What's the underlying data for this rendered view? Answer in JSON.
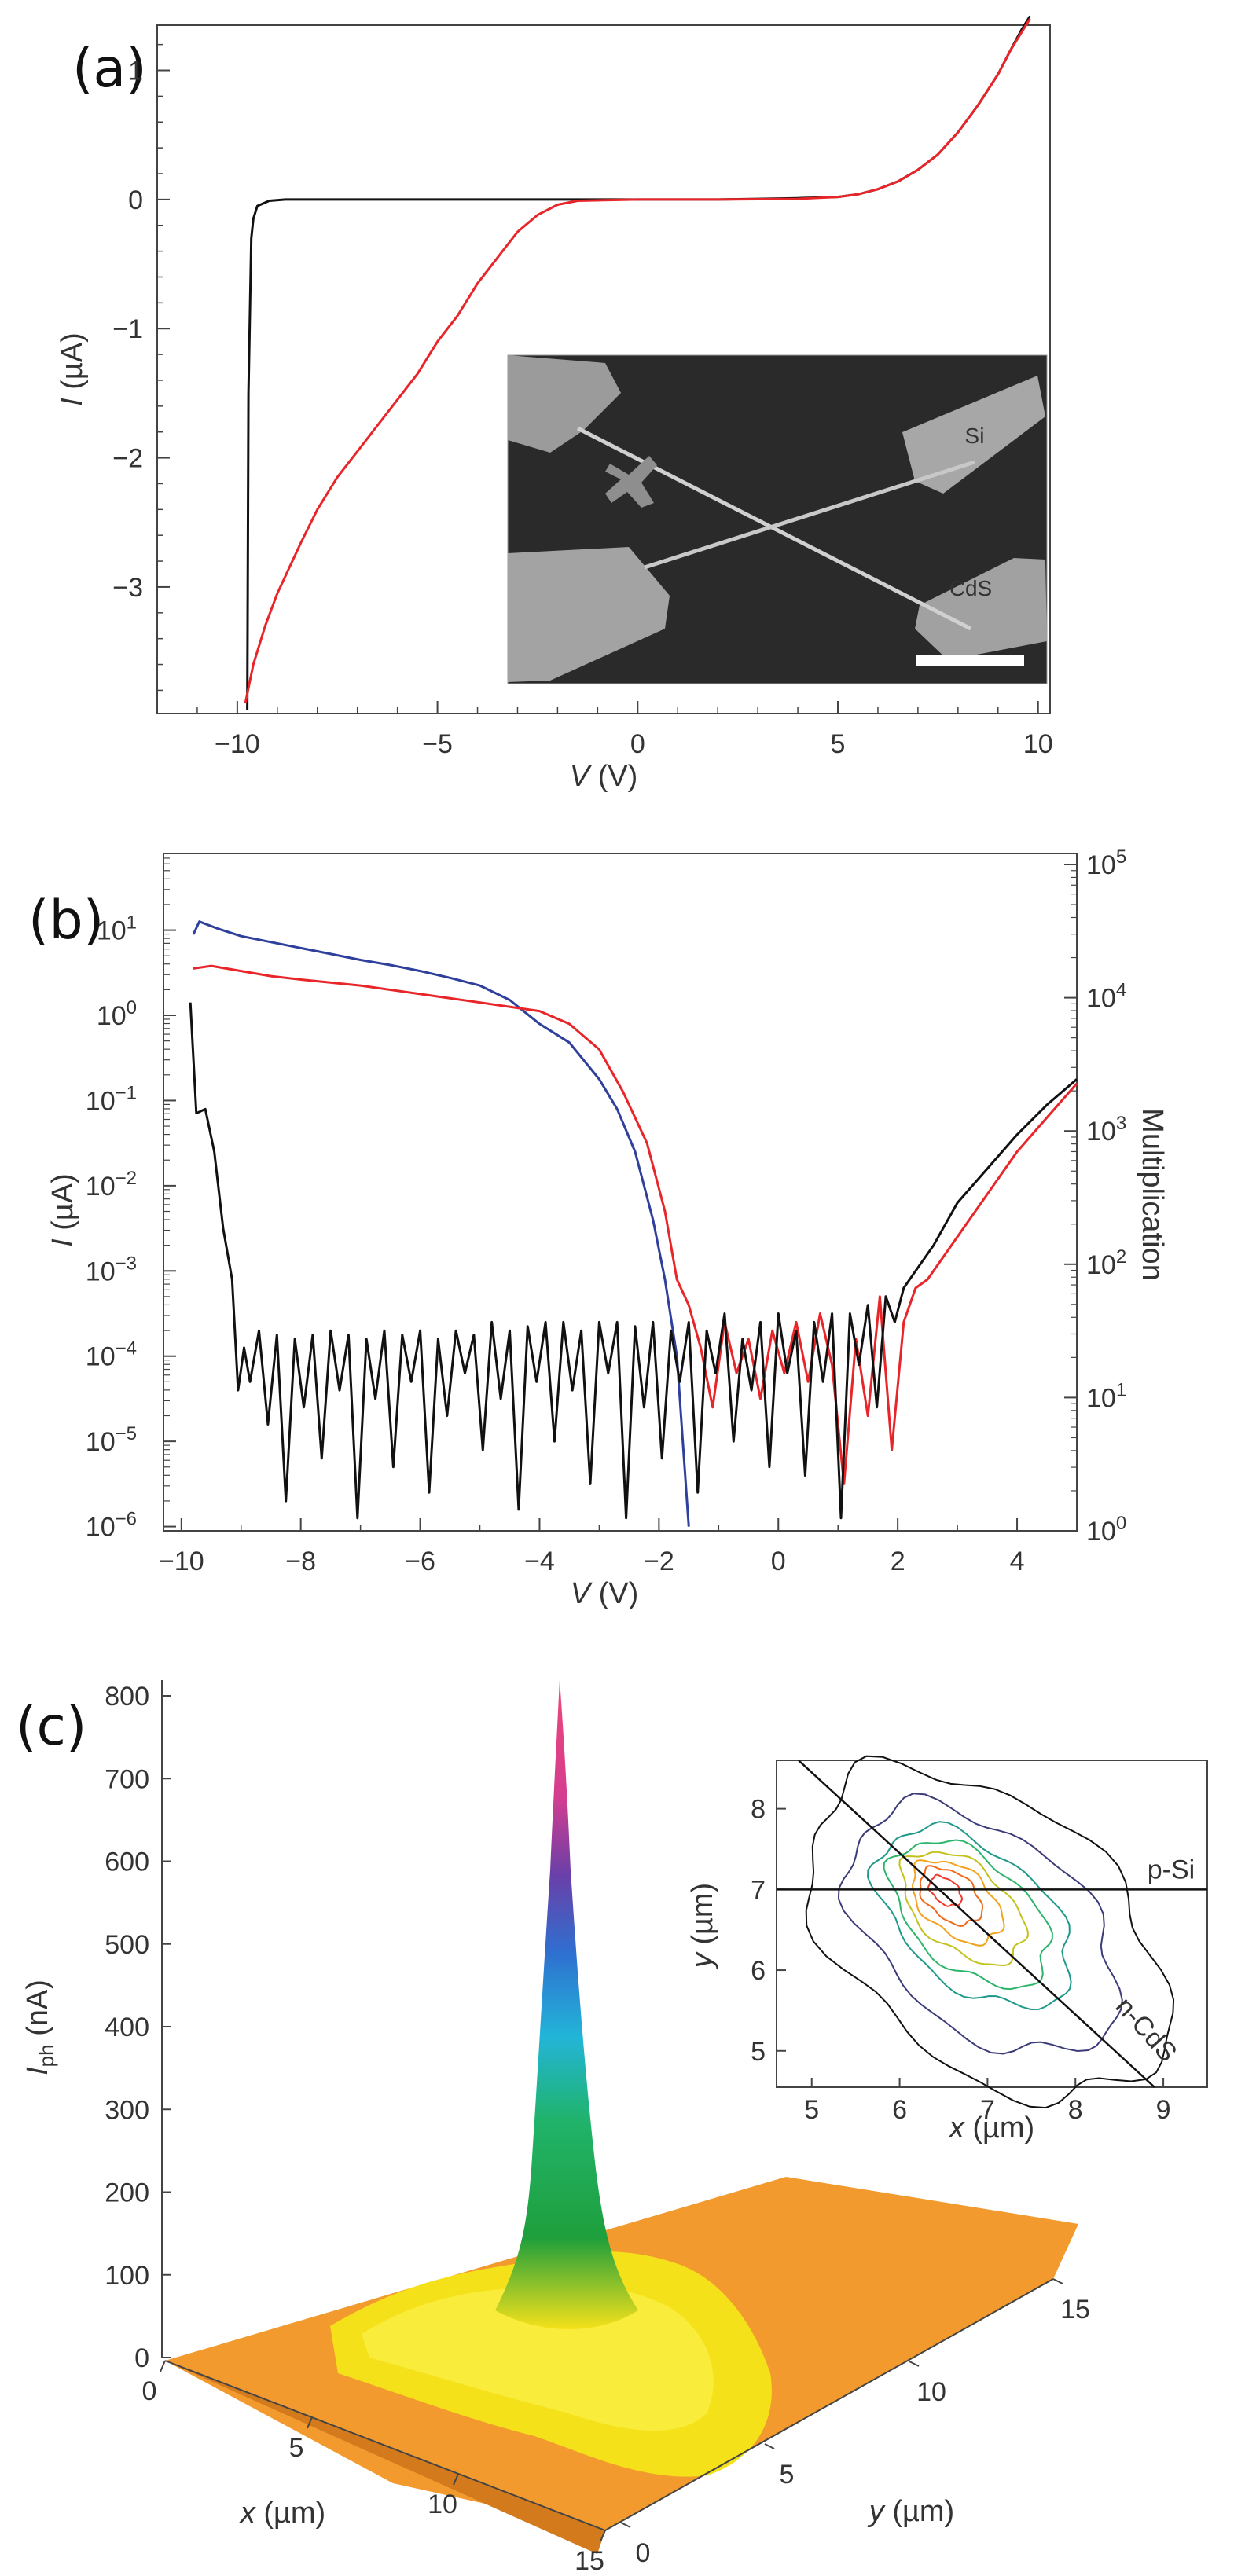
{
  "panels": [
    {
      "label": "(a)"
    },
    {
      "label": "(b)"
    },
    {
      "label": "(c)"
    }
  ],
  "chart_data": [
    {
      "type": "line",
      "panel": "(a)",
      "xlabel_symbol": "V",
      "xlabel_unit": "(V)",
      "ylabel_symbol": "I",
      "ylabel_unit": "(µA)",
      "xlim": [
        -12,
        10.3
      ],
      "ylim": [
        -3.98,
        1.35
      ],
      "xticks": [
        -10,
        -5,
        0,
        5,
        10
      ],
      "xtick_labels": [
        "−10",
        "−5",
        "0",
        "5",
        "10"
      ],
      "yticks": [
        1,
        0,
        -1,
        -2,
        -3
      ],
      "ytick_labels": [
        "1",
        "0",
        "−1",
        "−2",
        "−3"
      ],
      "series": [
        {
          "color": "#111111",
          "x": [
            -9.75,
            -9.72,
            -9.65,
            -9.6,
            -9.5,
            -9.2,
            -8.8,
            -8,
            -6,
            -4,
            -2,
            0,
            2,
            3,
            4,
            5,
            5.5,
            6,
            6.5,
            7,
            7.5,
            8,
            8.5,
            9,
            9.3,
            9.6,
            9.8
          ],
          "y": [
            -3.95,
            -1.5,
            -0.3,
            -0.15,
            -0.05,
            -0.01,
            0,
            0,
            0,
            0,
            0,
            0,
            0,
            0.005,
            0.01,
            0.02,
            0.04,
            0.08,
            0.14,
            0.23,
            0.35,
            0.52,
            0.73,
            0.97,
            1.15,
            1.32,
            1.42
          ]
        },
        {
          "color": "#e8262a",
          "x": [
            -9.8,
            -9.6,
            -9.3,
            -9,
            -8.7,
            -8.4,
            -8,
            -7.5,
            -7,
            -6.5,
            -6,
            -5.5,
            -5,
            -4.5,
            -4,
            -3.5,
            -3,
            -2.5,
            -2,
            -1.5,
            0,
            2,
            4,
            5,
            5.5,
            6,
            6.5,
            7,
            7.5,
            8,
            8.5,
            9,
            9.3,
            9.6,
            9.8
          ],
          "y": [
            -3.9,
            -3.6,
            -3.3,
            -3.05,
            -2.85,
            -2.65,
            -2.4,
            -2.15,
            -1.95,
            -1.75,
            -1.55,
            -1.35,
            -1.1,
            -0.9,
            -0.65,
            -0.45,
            -0.25,
            -0.12,
            -0.04,
            -0.01,
            0,
            0,
            0.005,
            0.02,
            0.04,
            0.08,
            0.14,
            0.23,
            0.35,
            0.52,
            0.73,
            0.97,
            1.15,
            1.3,
            1.4
          ]
        }
      ],
      "inset_image": {
        "description_labels": [
          "Si",
          "CdS"
        ]
      }
    },
    {
      "type": "line",
      "panel": "(b)",
      "xlabel_symbol": "V",
      "xlabel_unit": "(V)",
      "ylabel_symbol": "I",
      "ylabel_unit": "(µA)",
      "y2label": "Multiplication",
      "yscale": "log",
      "xlim": [
        -10.3,
        5
      ],
      "ylim_log10": [
        -6.05,
        1.9
      ],
      "xticks": [
        -10,
        -8,
        -6,
        -4,
        -2,
        0,
        2,
        4
      ],
      "xtick_labels": [
        "−10",
        "−8",
        "−6",
        "−4",
        "−2",
        "0",
        "2",
        "4"
      ],
      "ytick_labels": [
        "10",
        "10",
        "10",
        "10",
        "10",
        "10",
        "10",
        "10"
      ],
      "ytick_exponents": [
        "1",
        "0",
        "−1",
        "−2",
        "−3",
        "−4",
        "−5",
        "−6"
      ],
      "yticks_log10": [
        1,
        0,
        -1,
        -2,
        -3,
        -4,
        -5,
        -6
      ],
      "y2tick_labels": [
        "10",
        "10",
        "10",
        "10",
        "10",
        "10"
      ],
      "y2tick_exponents": [
        "5",
        "4",
        "3",
        "2",
        "1",
        "0"
      ],
      "series": [
        {
          "color": "#2f3f9c",
          "x": [
            -9.8,
            -9.7,
            -9.4,
            -9,
            -8.5,
            -8,
            -7.5,
            -7,
            -6.5,
            -6,
            -5.5,
            -5,
            -4.5,
            -4,
            -3.5,
            -3,
            -2.7,
            -2.4,
            -2.1,
            -1.9,
            -1.7,
            -1.6,
            -1.5
          ],
          "y_log10": [
            0.95,
            1.1,
            1.02,
            0.93,
            0.86,
            0.79,
            0.72,
            0.65,
            0.59,
            0.52,
            0.44,
            0.35,
            0.18,
            -0.1,
            -0.32,
            -0.75,
            -1.1,
            -1.6,
            -2.4,
            -3.1,
            -4.0,
            -5.0,
            -6.0
          ]
        },
        {
          "color": "#e8262a",
          "x": [
            -9.8,
            -9.5,
            -9,
            -8.5,
            -8,
            -7,
            -6,
            -5,
            -4,
            -3.5,
            -3,
            -2.6,
            -2.2,
            -1.9,
            -1.7,
            -1.5,
            -1.3,
            -1.1,
            -0.9,
            -0.7,
            -0.5,
            -0.3,
            -0.1,
            0.1,
            0.3,
            0.5,
            0.7,
            0.9,
            1.1,
            1.3,
            1.5,
            1.7,
            1.9,
            2.1,
            2.3,
            2.5,
            3,
            3.5,
            4,
            4.5,
            5
          ],
          "y_log10": [
            0.55,
            0.58,
            0.52,
            0.46,
            0.42,
            0.35,
            0.25,
            0.15,
            0.05,
            -0.1,
            -0.4,
            -0.9,
            -1.5,
            -2.3,
            -3.1,
            -3.4,
            -3.9,
            -4.6,
            -3.6,
            -4.2,
            -3.8,
            -4.5,
            -3.7,
            -4.2,
            -3.6,
            -4.3,
            -3.5,
            -4.1,
            -5.5,
            -3.8,
            -4.7,
            -3.3,
            -5.1,
            -3.6,
            -3.2,
            -3.1,
            -2.6,
            -2.1,
            -1.6,
            -1.2,
            -0.8
          ]
        },
        {
          "color": "#111111",
          "x": [
            -9.85,
            -9.75,
            -9.6,
            -9.45,
            -9.3,
            -9.15,
            -9.05,
            -8.95,
            -8.85,
            -8.7,
            -8.55,
            -8.4,
            -8.25,
            -8.1,
            -7.95,
            -7.8,
            -7.65,
            -7.5,
            -7.35,
            -7.2,
            -7.05,
            -6.9,
            -6.75,
            -6.6,
            -6.45,
            -6.3,
            -6.15,
            -6,
            -5.85,
            -5.7,
            -5.55,
            -5.4,
            -5.25,
            -5.1,
            -4.95,
            -4.8,
            -4.65,
            -4.5,
            -4.35,
            -4.2,
            -4.05,
            -3.9,
            -3.75,
            -3.6,
            -3.45,
            -3.3,
            -3.15,
            -3,
            -2.85,
            -2.7,
            -2.55,
            -2.4,
            -2.25,
            -2.1,
            -1.95,
            -1.8,
            -1.65,
            -1.5,
            -1.35,
            -1.2,
            -1.05,
            -0.9,
            -0.75,
            -0.6,
            -0.45,
            -0.3,
            -0.15,
            0,
            0.15,
            0.3,
            0.45,
            0.6,
            0.75,
            0.9,
            1.05,
            1.2,
            1.35,
            1.5,
            1.65,
            1.8,
            1.95,
            2.1,
            2.3,
            2.6,
            3,
            3.5,
            4,
            4.5,
            5
          ],
          "y_log10": [
            0.15,
            -1.15,
            -1.1,
            -1.6,
            -2.5,
            -3.1,
            -4.4,
            -3.9,
            -4.3,
            -3.7,
            -4.8,
            -3.75,
            -5.7,
            -3.8,
            -4.6,
            -3.75,
            -5.2,
            -3.7,
            -4.4,
            -3.75,
            -5.9,
            -3.8,
            -4.5,
            -3.7,
            -5.3,
            -3.75,
            -4.3,
            -3.7,
            -5.6,
            -3.8,
            -4.7,
            -3.7,
            -4.2,
            -3.75,
            -5.1,
            -3.6,
            -4.5,
            -3.7,
            -5.8,
            -3.65,
            -4.3,
            -3.6,
            -5.0,
            -3.6,
            -4.4,
            -3.7,
            -5.5,
            -3.6,
            -4.2,
            -3.6,
            -5.9,
            -3.65,
            -4.6,
            -3.6,
            -5.2,
            -3.7,
            -4.3,
            -3.6,
            -5.6,
            -3.7,
            -4.2,
            -3.5,
            -5.0,
            -3.8,
            -4.4,
            -3.6,
            -5.3,
            -3.5,
            -4.2,
            -3.7,
            -5.4,
            -3.6,
            -4.3,
            -3.5,
            -5.9,
            -3.5,
            -4.1,
            -3.4,
            -4.6,
            -3.3,
            -3.6,
            -3.2,
            -3.0,
            -2.7,
            -2.2,
            -1.8,
            -1.4,
            -1.05,
            -0.75
          ]
        }
      ]
    },
    {
      "type": "surface3d",
      "panel": "(c)",
      "zlabel_main": "I",
      "zlabel_sub": "ph",
      "zlabel_unit": "(nA)",
      "xlabel_symbol": "x",
      "xlabel_unit": "(µm)",
      "ylabel_symbol": "y",
      "ylabel_unit": "(µm)",
      "zticks": [
        "800",
        "700",
        "600",
        "500",
        "400",
        "300",
        "200",
        "100",
        "0"
      ],
      "xticks": [
        "0",
        "5",
        "10",
        "15"
      ],
      "yticks": [
        "0",
        "5",
        "10",
        "15"
      ],
      "peak": {
        "z_nA": 820
      },
      "inset": {
        "type": "contour",
        "xlabel_symbol": "x",
        "xlabel_unit": "(µm)",
        "ylabel_symbol": "y",
        "ylabel_unit": "(µm)",
        "xticks": [
          "5",
          "6",
          "7",
          "8",
          "9"
        ],
        "yticks": [
          "8",
          "7",
          "6",
          "5"
        ],
        "xlim": [
          4.6,
          9.5
        ],
        "ylim": [
          4.55,
          8.6
        ],
        "annotations": [
          "p-Si",
          "n-CdS"
        ],
        "center": {
          "x": 6.5,
          "y": 7.0
        },
        "contour_colors": [
          "#111111",
          "#3b3b7a",
          "#1f9a8a",
          "#2bb56a",
          "#c2c21e",
          "#f2a21c",
          "#f06a1c",
          "#ee3b2d"
        ]
      }
    }
  ]
}
